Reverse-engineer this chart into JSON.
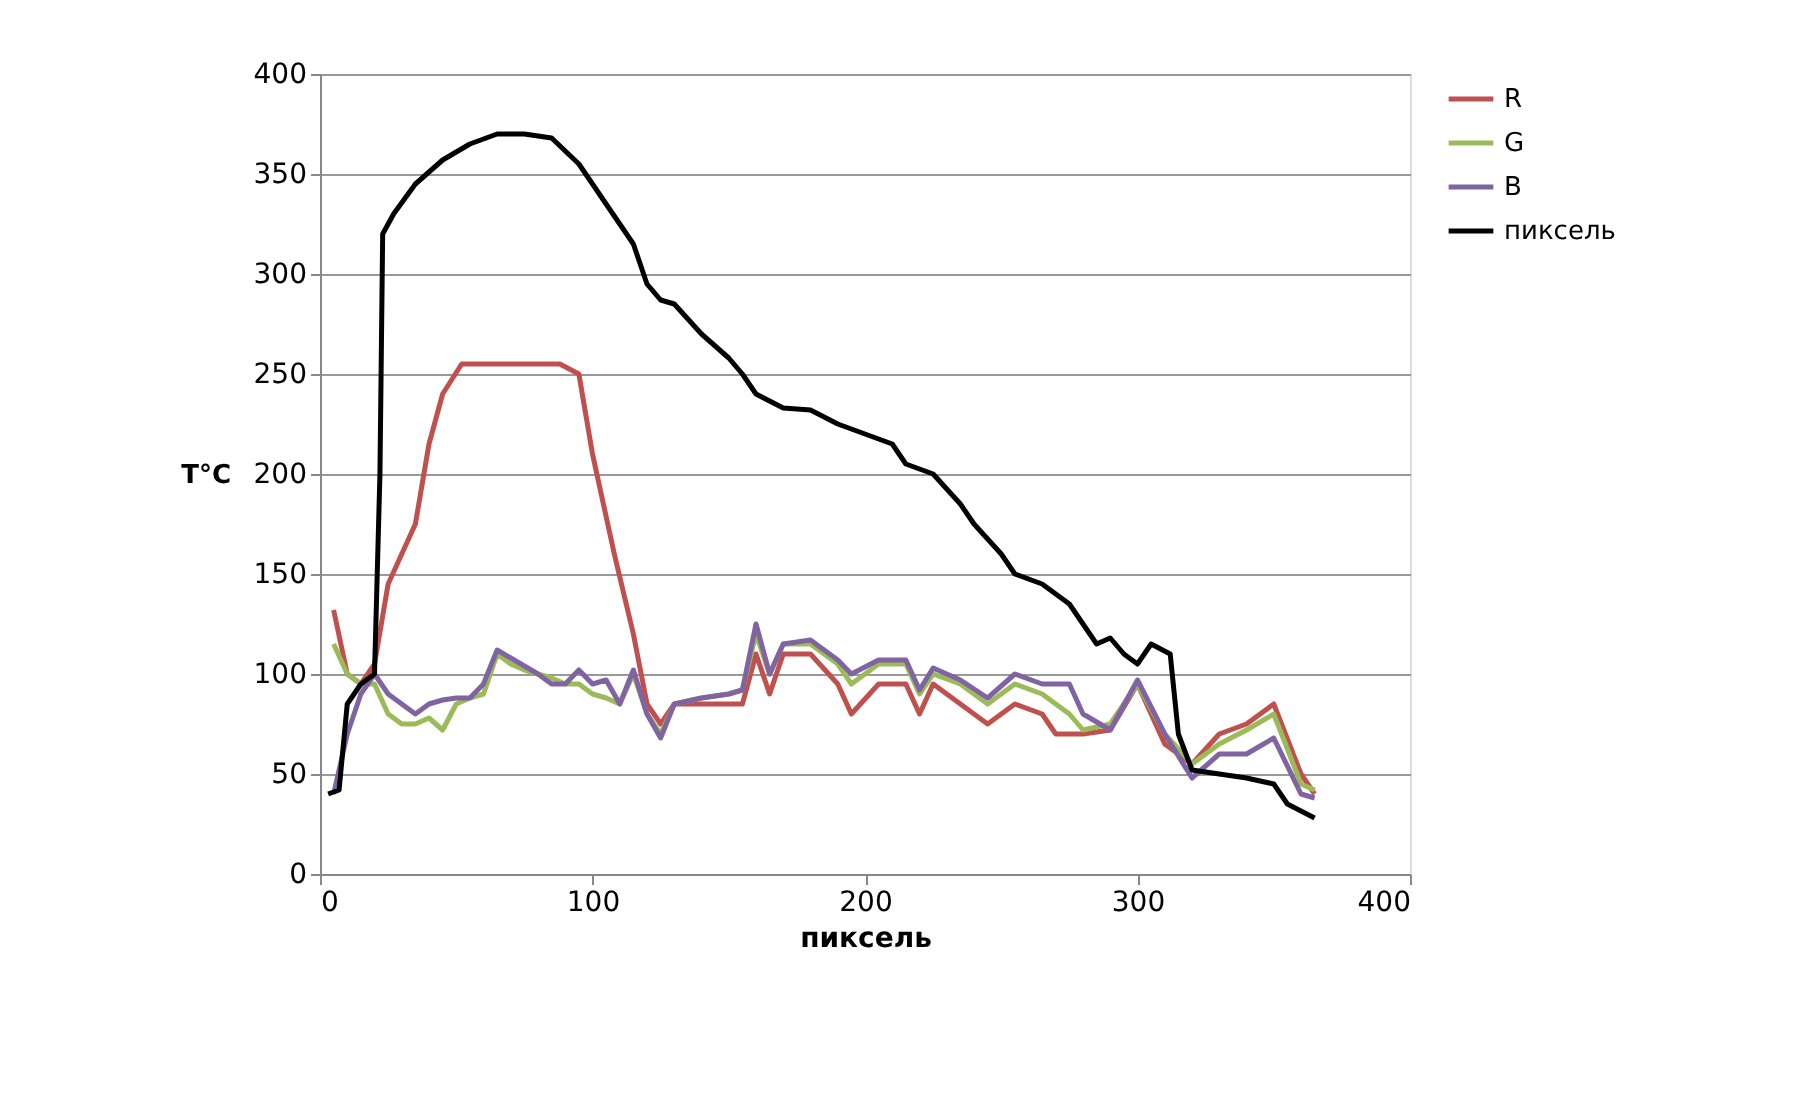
{
  "chart_data": {
    "type": "line",
    "xlabel": "пиксель",
    "ylabel": "T°C",
    "xlim": [
      0,
      400
    ],
    "xticks": [
      0,
      100,
      200,
      300,
      400
    ],
    "ylim": [
      0,
      400
    ],
    "yticks": [
      0,
      50,
      100,
      150,
      200,
      250,
      300,
      350,
      400
    ],
    "grid": "y",
    "legend": "right",
    "marker": "none",
    "line_style": "solid",
    "series": [
      {
        "name": "R",
        "color": "#c0504d",
        "x": [
          5,
          10,
          15,
          20,
          25,
          30,
          35,
          40,
          45,
          52,
          60,
          70,
          80,
          88,
          95,
          100,
          108,
          115,
          120,
          125,
          130,
          140,
          150,
          155,
          160,
          165,
          170,
          180,
          190,
          195,
          205,
          215,
          220,
          225,
          235,
          245,
          255,
          265,
          270,
          280,
          290,
          300,
          310,
          320,
          330,
          340,
          350,
          360,
          365
        ],
        "values": [
          132,
          100,
          95,
          105,
          145,
          160,
          175,
          215,
          240,
          255,
          255,
          255,
          255,
          255,
          250,
          210,
          160,
          120,
          85,
          75,
          85,
          85,
          85,
          85,
          110,
          90,
          110,
          110,
          95,
          80,
          95,
          95,
          80,
          95,
          85,
          75,
          85,
          80,
          70,
          70,
          72,
          95,
          65,
          55,
          70,
          75,
          85,
          50,
          40
        ]
      },
      {
        "name": "G",
        "color": "#9bbb59",
        "x": [
          5,
          10,
          15,
          20,
          25,
          30,
          35,
          40,
          45,
          50,
          55,
          60,
          65,
          70,
          75,
          80,
          85,
          90,
          95,
          100,
          105,
          110,
          115,
          120,
          125,
          130,
          140,
          150,
          155,
          160,
          165,
          170,
          180,
          190,
          195,
          205,
          215,
          220,
          225,
          235,
          245,
          255,
          265,
          270,
          275,
          280,
          290,
          300,
          310,
          320,
          330,
          340,
          350,
          360,
          365
        ],
        "values": [
          115,
          100,
          95,
          95,
          80,
          75,
          75,
          78,
          72,
          85,
          88,
          90,
          110,
          105,
          102,
          100,
          98,
          95,
          95,
          90,
          88,
          85,
          100,
          80,
          70,
          85,
          88,
          90,
          92,
          120,
          100,
          115,
          115,
          105,
          95,
          105,
          105,
          90,
          100,
          95,
          85,
          95,
          90,
          85,
          80,
          72,
          75,
          95,
          70,
          55,
          65,
          72,
          80,
          45,
          42
        ]
      },
      {
        "name": "B",
        "color": "#8064a2",
        "x": [
          5,
          10,
          15,
          20,
          25,
          30,
          35,
          40,
          45,
          50,
          55,
          60,
          65,
          70,
          80,
          85,
          90,
          95,
          100,
          105,
          110,
          115,
          120,
          125,
          130,
          140,
          150,
          155,
          160,
          165,
          170,
          180,
          190,
          195,
          205,
          215,
          220,
          225,
          235,
          245,
          255,
          265,
          275,
          280,
          290,
          300,
          310,
          320,
          330,
          340,
          350,
          360,
          365
        ],
        "values": [
          40,
          70,
          90,
          100,
          90,
          85,
          80,
          85,
          87,
          88,
          88,
          95,
          112,
          108,
          100,
          95,
          95,
          102,
          95,
          97,
          85,
          102,
          80,
          68,
          85,
          88,
          90,
          92,
          125,
          100,
          115,
          117,
          107,
          100,
          107,
          107,
          92,
          103,
          97,
          88,
          100,
          95,
          95,
          80,
          72,
          97,
          70,
          48,
          60,
          60,
          68,
          40,
          38
        ]
      },
      {
        "name": "пиксель",
        "color": "#000000",
        "x": [
          3,
          7,
          10,
          15,
          20,
          22,
          23,
          27,
          35,
          45,
          55,
          65,
          75,
          85,
          95,
          105,
          115,
          120,
          125,
          130,
          140,
          150,
          155,
          160,
          170,
          180,
          190,
          200,
          210,
          215,
          225,
          235,
          240,
          250,
          255,
          265,
          275,
          285,
          290,
          295,
          300,
          305,
          312,
          315,
          320,
          330,
          340,
          350,
          355,
          365
        ],
        "values": [
          40,
          42,
          85,
          95,
          100,
          200,
          320,
          330,
          345,
          357,
          365,
          370,
          370,
          368,
          355,
          335,
          315,
          295,
          287,
          285,
          270,
          258,
          250,
          240,
          233,
          232,
          225,
          220,
          215,
          205,
          200,
          185,
          175,
          160,
          150,
          145,
          135,
          115,
          118,
          110,
          105,
          115,
          110,
          70,
          52,
          50,
          48,
          45,
          35,
          28
        ]
      }
    ]
  }
}
